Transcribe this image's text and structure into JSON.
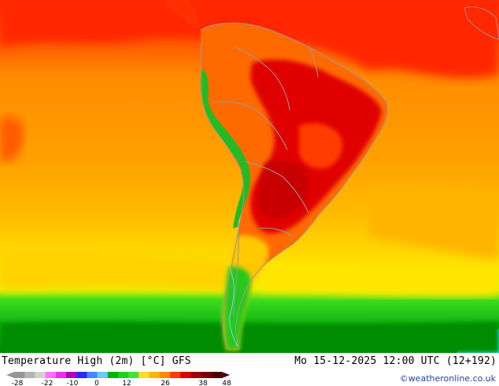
{
  "header": {
    "title": "Temperature High (2m) [°C] GFS",
    "datetime": "Mo 15-12-2025 12:00 UTC (12+192)",
    "credit": "©weatheronline.co.uk"
  },
  "colorbar": {
    "unit": "°C",
    "ticks": [
      "-28",
      "-22",
      "-10",
      "0",
      "12",
      "26",
      "38",
      "48"
    ],
    "colors": [
      "#969696",
      "#b4b4b4",
      "#d2d2d2",
      "#ff6eff",
      "#e632e6",
      "#b400b4",
      "#2828ff",
      "#3c8cff",
      "#6ec8ff",
      "#00b400",
      "#1ed21e",
      "#3ce63c",
      "#ffdc28",
      "#ffb400",
      "#ff8c00",
      "#ff3c00",
      "#dc0000",
      "#a00000",
      "#780000",
      "#500000"
    ]
  },
  "map": {
    "region": "South America",
    "palette": {
      "ocean_south": "#00aa00",
      "ocean_mid": "#ffd700",
      "ocean_warm": "#ff9f00",
      "tropics": "#ff3000",
      "land_hot": "#e00000",
      "land_warm": "#ff6a00",
      "andes": "#22bb22",
      "sea_cold": "#33eeff",
      "border": "#9a9a9a"
    }
  }
}
